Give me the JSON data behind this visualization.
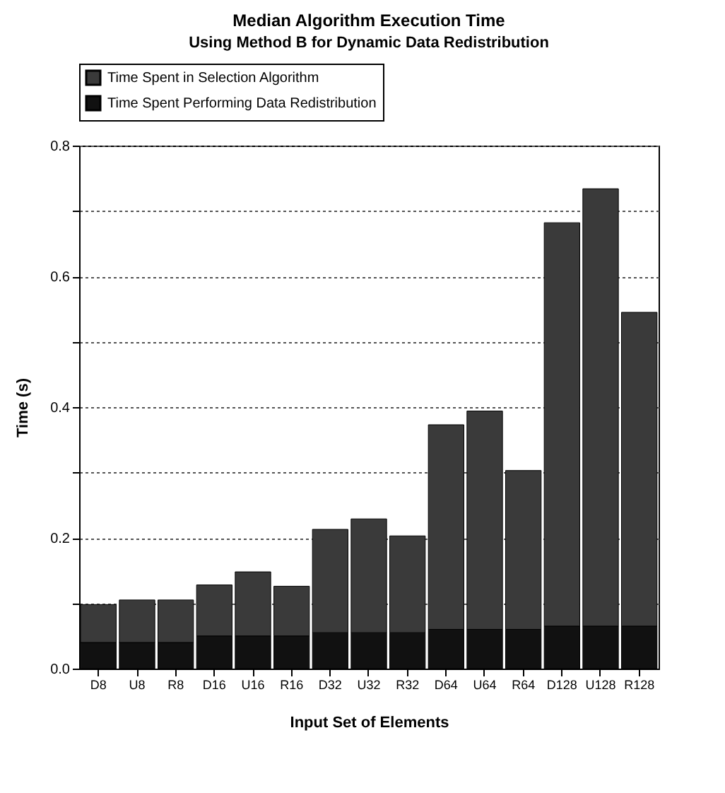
{
  "chart_data": {
    "type": "bar",
    "title": "Median Algorithm Execution Time",
    "subtitle": "Using Method B for Dynamic Data Redistribution",
    "xlabel": "Input Set of Elements",
    "ylabel": "Time (s)",
    "categories": [
      "D8",
      "U8",
      "R8",
      "D16",
      "U16",
      "R16",
      "D32",
      "U32",
      "R32",
      "D64",
      "U64",
      "R64",
      "D128",
      "U128",
      "R128"
    ],
    "stacked": true,
    "series": [
      {
        "name": "Time Spent Performing Data Redistribution",
        "color": "#111111",
        "values": [
          0.04,
          0.04,
          0.04,
          0.05,
          0.05,
          0.05,
          0.055,
          0.055,
          0.055,
          0.06,
          0.06,
          0.06,
          0.065,
          0.065,
          0.065
        ]
      },
      {
        "name": "Time Spent in Selection Algorithm",
        "color": "#3a3a3a",
        "values": [
          0.058,
          0.065,
          0.065,
          0.078,
          0.098,
          0.076,
          0.158,
          0.174,
          0.148,
          0.313,
          0.334,
          0.243,
          0.617,
          0.669,
          0.48
        ]
      }
    ],
    "ylim": [
      0,
      0.8
    ],
    "yticks": [
      {
        "value": 0,
        "label": "0.0"
      },
      {
        "value": 0.1,
        "label": null
      },
      0.2,
      {
        "value": 0.3,
        "label": null
      },
      0.4,
      {
        "value": 0.5,
        "label": null
      },
      0.6,
      {
        "value": 0.7,
        "label": null
      },
      0.8
    ],
    "grid": "y",
    "legend": "top left"
  }
}
